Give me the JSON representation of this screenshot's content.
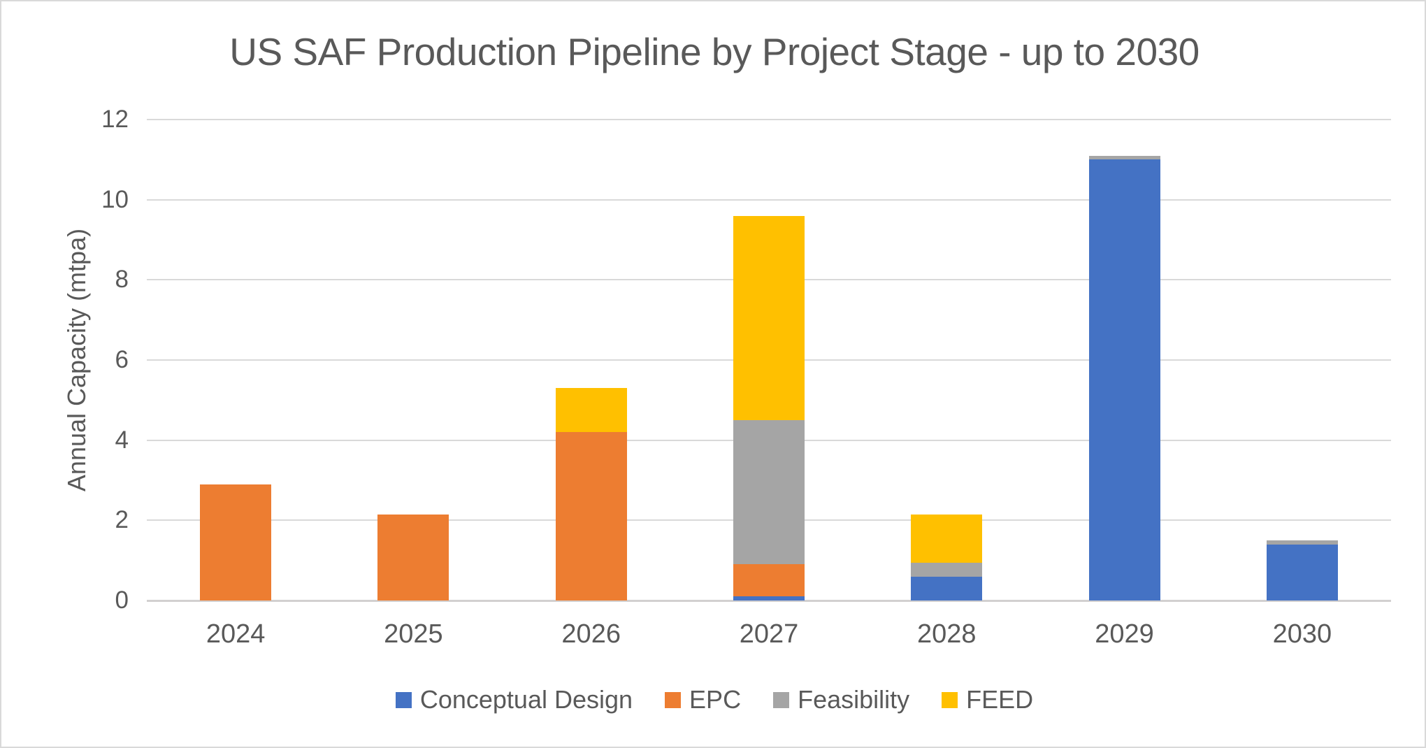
{
  "chart_data": {
    "type": "bar",
    "stacked": true,
    "title": "US SAF Production Pipeline by Project Stage - up to 2030",
    "ylabel": "Annual Capacity (mtpa)",
    "xlabel": "",
    "categories": [
      "2024",
      "2025",
      "2026",
      "2027",
      "2028",
      "2029",
      "2030"
    ],
    "series": [
      {
        "name": "Conceptual Design",
        "color": "#4472C4",
        "values": [
          0,
          0,
          0,
          0.1,
          0.6,
          11.0,
          1.4
        ]
      },
      {
        "name": "EPC",
        "color": "#ED7D31",
        "values": [
          2.9,
          2.15,
          4.2,
          0.8,
          0,
          0,
          0
        ]
      },
      {
        "name": "Feasibility",
        "color": "#A5A5A5",
        "values": [
          0,
          0,
          0,
          3.6,
          0.35,
          0.1,
          0.1
        ]
      },
      {
        "name": "FEED",
        "color": "#FFC000",
        "values": [
          0,
          0,
          1.1,
          5.1,
          1.2,
          0,
          0
        ]
      }
    ],
    "totals": [
      2.9,
      2.15,
      5.3,
      9.6,
      2.15,
      11.1,
      1.5
    ],
    "ylim": [
      0,
      12
    ],
    "ytick_interval": 2,
    "yticks": [
      0,
      2,
      4,
      6,
      8,
      10,
      12
    ],
    "grid": true,
    "legend_position": "bottom",
    "style": {
      "background": "#FFFFFF",
      "border_color": "#D9D9D9",
      "gridline_color": "#D9D9D9",
      "axis_line_color": "#D2D0D0",
      "text_color": "#595959"
    }
  }
}
